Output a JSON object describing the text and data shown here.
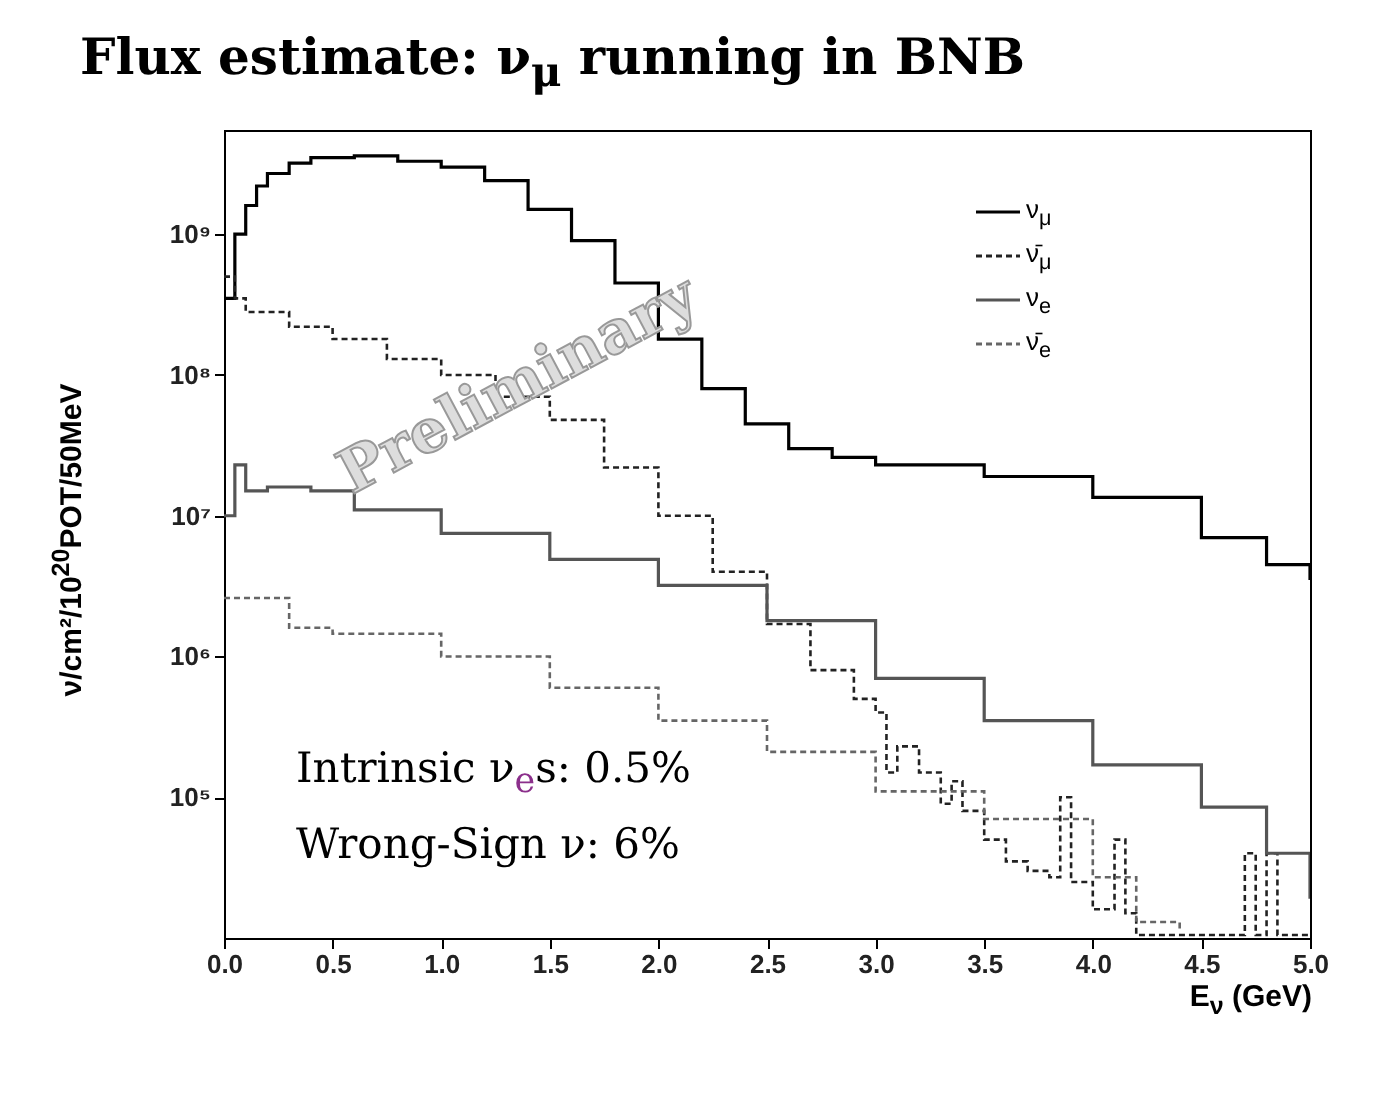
{
  "chart_data": {
    "type": "step",
    "title": "Flux estimate: ν$_{μ}$ running in BNB",
    "xlabel": "E$_{ν}$ (GeV)",
    "ylabel": "ν/cm²/10$^{20}$POT/50MeV",
    "annotations": [
      "Intrinsic ν$_{e}$s: 0.5%",
      "Wrong-Sign ν: 6%",
      "Preliminary"
    ],
    "log": "y",
    "grid": false,
    "legend": "top right",
    "xlim": [
      0,
      5
    ],
    "ylim": [
      10000,
      5500000000
    ],
    "xticks": [
      {
        "value": 0,
        "label": "0.0"
      },
      {
        "value": 0.5,
        "label": "0.5"
      },
      {
        "value": 1,
        "label": "1.0"
      },
      {
        "value": 1.5,
        "label": "1.5"
      },
      {
        "value": 2,
        "label": "2.0"
      },
      {
        "value": 2.5,
        "label": "2.5"
      },
      {
        "value": 3,
        "label": "3.0"
      },
      {
        "value": 3.5,
        "label": "3.5"
      },
      {
        "value": 4,
        "label": "4.0"
      },
      {
        "value": 4.5,
        "label": "4.5"
      },
      {
        "value": 5,
        "label": "5.0"
      }
    ],
    "yticks": [
      {
        "value": 100000,
        "label": "10⁵"
      },
      {
        "value": 1000000,
        "label": "10⁶"
      },
      {
        "value": 10000000,
        "label": "10⁷"
      },
      {
        "value": 100000000,
        "label": "10⁸"
      },
      {
        "value": 1000000000,
        "label": "10⁹"
      }
    ],
    "series": [
      {
        "name": "ν$_{μ}$",
        "color": "#000000",
        "line_style": "solid",
        "x": [
          0,
          0.05,
          0.1,
          0.15,
          0.2,
          0.3,
          0.4,
          0.6,
          0.8,
          1.0,
          1.2,
          1.4,
          1.6,
          1.8,
          2.0,
          2.2,
          2.4,
          2.6,
          2.8,
          3.0,
          3.5,
          4.0,
          4.5,
          4.8,
          5.0
        ],
        "values": [
          350000000,
          1000000000,
          1600000000,
          2200000000,
          2700000000,
          3200000000,
          3500000000,
          3600000000,
          3300000000,
          3000000000,
          2400000000,
          1500000000,
          900000000,
          450000000,
          180000000,
          80000000,
          45000000,
          30000000,
          26000000,
          23000000,
          19000000,
          13500000,
          7000000,
          4500000,
          3500000
        ]
      },
      {
        "name": "ν̄$_{μ}$",
        "color": "#222222",
        "line_style": "dashed",
        "x": [
          0,
          0.05,
          0.1,
          0.3,
          0.5,
          0.75,
          1.0,
          1.25,
          1.5,
          1.75,
          2.0,
          2.25,
          2.5,
          2.7,
          2.9,
          3.0,
          3.05,
          3.1,
          3.2,
          3.3,
          3.35,
          3.4,
          3.5,
          3.6,
          3.7,
          3.8,
          3.85,
          3.9,
          4.0,
          4.1,
          4.15,
          4.2,
          4.7,
          4.75,
          4.8,
          4.85,
          5.0
        ],
        "values": [
          500000000,
          350000000,
          280000000,
          220000000,
          180000000,
          130000000,
          100000000,
          70000000,
          48000000,
          22000000,
          10000000,
          4000000,
          1700000,
          800000,
          500000,
          400000,
          150000,
          230000,
          150000,
          90000,
          130000,
          80000,
          50000,
          35000,
          30000,
          27000,
          100000,
          25000,
          16000,
          50000,
          15000,
          10500,
          40000,
          10500,
          40000,
          10500,
          10500
        ]
      },
      {
        "name": "ν$_{e}$",
        "color": "#555555",
        "line_style": "solid",
        "x": [
          0,
          0.05,
          0.1,
          0.2,
          0.4,
          0.6,
          1.0,
          1.5,
          2.0,
          2.5,
          3.0,
          3.5,
          4.0,
          4.5,
          4.8,
          5.0
        ],
        "values": [
          10000000,
          23000000,
          15000000,
          16000000,
          15000000,
          11000000,
          7500000,
          4900000,
          3200000,
          1800000,
          700000,
          350000,
          170000,
          85000,
          40000,
          19000
        ]
      },
      {
        "name": "ν̄$_{e}$",
        "color": "#666666",
        "line_style": "dashed",
        "x": [
          0,
          0.3,
          0.5,
          1.0,
          1.5,
          2.0,
          2.5,
          3.0,
          3.5,
          4.0,
          4.2,
          4.4
        ],
        "values": [
          2600000,
          1600000,
          1450000,
          1000000,
          600000,
          350000,
          210000,
          110000,
          70000,
          27000,
          13000,
          11000
        ]
      }
    ]
  }
}
